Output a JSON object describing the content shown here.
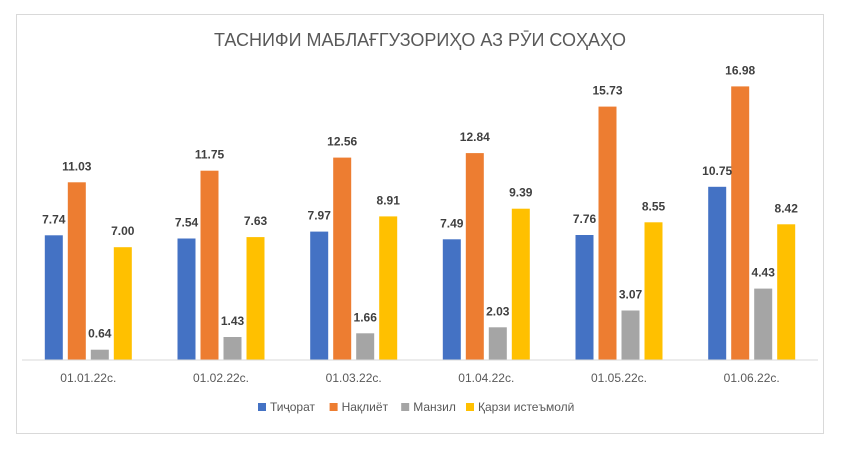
{
  "chart_data": {
    "type": "bar",
    "title": "ТАСНИФИ МАБЛАҒГУЗОРИҲО АЗ РӮИ СОҲАҲО",
    "xlabel": "",
    "ylabel": "",
    "categories": [
      "01.01.22с.",
      "01.02.22с.",
      "01.03.22с.",
      "01.04.22с.",
      "01.05.22с.",
      "01.06.22с."
    ],
    "series": [
      {
        "name": "Тиҷорат",
        "color": "#4472c4",
        "values": [
          7.74,
          7.54,
          7.97,
          7.49,
          7.76,
          10.75
        ]
      },
      {
        "name": "Нақлиёт",
        "color": "#ed7d31",
        "values": [
          11.03,
          11.75,
          12.56,
          12.84,
          15.73,
          16.98
        ]
      },
      {
        "name": "Манзил",
        "color": "#a5a5a5",
        "values": [
          0.64,
          1.43,
          1.66,
          2.03,
          3.07,
          4.43
        ]
      },
      {
        "name": "Қарзи истеъмолӣ",
        "color": "#ffc000",
        "values": [
          7.0,
          7.63,
          8.91,
          9.39,
          8.55,
          8.42
        ]
      }
    ],
    "ylim": [
      0,
      18
    ],
    "grid": false,
    "legend": "bottom",
    "data_labels": true
  }
}
